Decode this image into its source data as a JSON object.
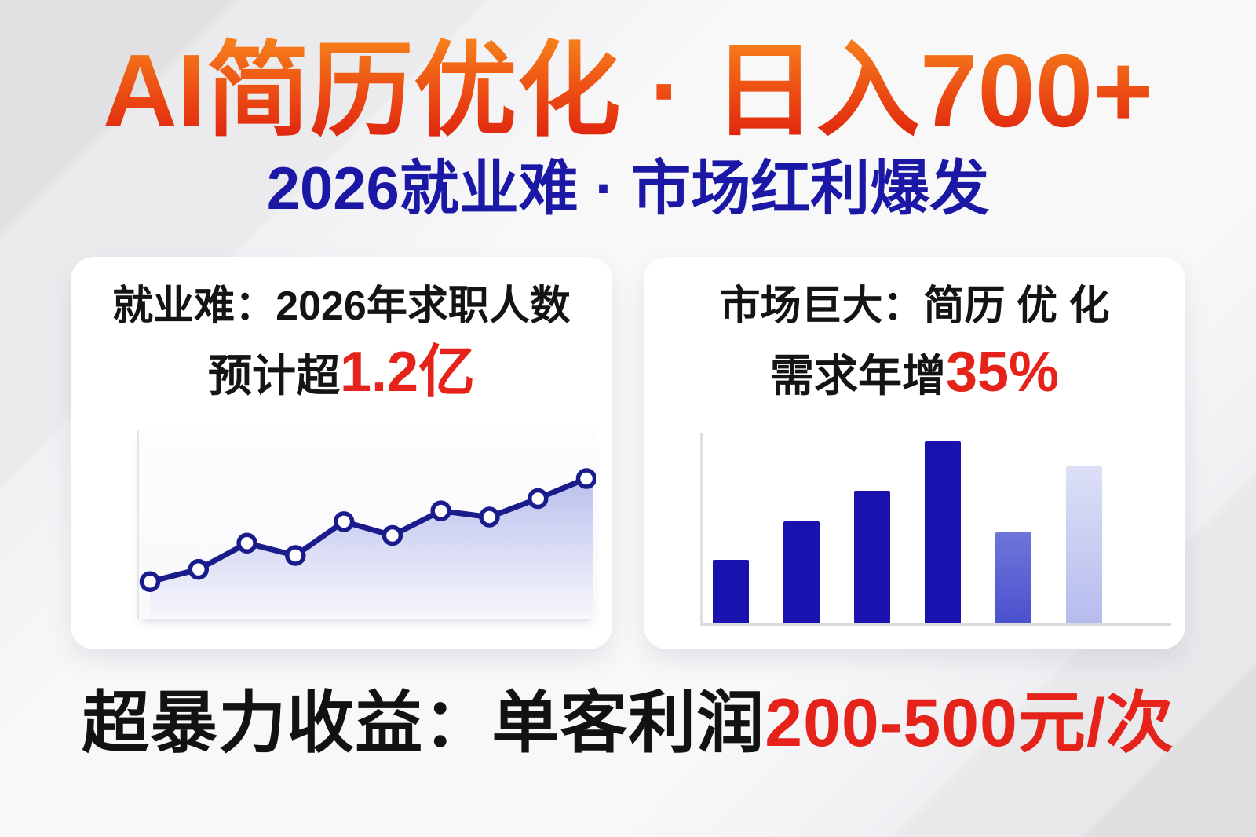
{
  "header": {
    "title": "AI简历优化 · 日入700+",
    "subtitle": "2026就业难 · 市场红利爆发"
  },
  "cards": [
    {
      "heading_line1": "就业难：2026年求职人数",
      "heading_line2_black": "预计超",
      "heading_line2_red": "1.2亿"
    },
    {
      "heading_line1": "市场巨大：简历 优 化",
      "heading_line2_black": "需求年增",
      "heading_line2_red": "35%"
    }
  ],
  "footer": {
    "black": "超暴力收益：单客利润",
    "red": "200-500元/次"
  },
  "chart_data": [
    {
      "type": "line",
      "title": "",
      "xlabel": "",
      "ylabel": "",
      "values": [
        20,
        28,
        45,
        37,
        59,
        50,
        66,
        62,
        74,
        87
      ],
      "ylim": [
        0,
        100
      ],
      "grid": false,
      "legend": false,
      "tick_labels_visible": false,
      "line_color": "#1A1C8C",
      "marker_shape": "circle",
      "marker_fill": "#FFFFFF",
      "area_gradient_top": "#7D87DC",
      "area_gradient_bottom": "#FFFFFF"
    },
    {
      "type": "bar",
      "title": "",
      "xlabel": "",
      "ylabel": "",
      "values": [
        35,
        56,
        73,
        100,
        50,
        86
      ],
      "ylim": [
        0,
        100
      ],
      "grid": false,
      "legend": false,
      "tick_labels_visible": false,
      "bar_colors": [
        {
          "from": "#1A12AE",
          "to": "#1A12AE"
        },
        {
          "from": "#1A12AE",
          "to": "#1A12AE"
        },
        {
          "from": "#1A12AE",
          "to": "#1A12AE"
        },
        {
          "from": "#1A12AE",
          "to": "#1A12AE"
        },
        {
          "from": "#6E76DA",
          "to": "#4A51CE"
        },
        {
          "from": "#DCE0F6",
          "to": "#B5BCEE"
        }
      ]
    }
  ],
  "palette": {
    "title_gradient_top": "#F6821C",
    "title_gradient_bottom": "#DD200F",
    "subtitle_navy": "#1B18A6",
    "accent_red": "#E5231A",
    "text_black": "#141414",
    "card_bg": "#FFFFFF",
    "page_bg": "#F8F8F9",
    "stripe_gray": "#E1E1E4",
    "axis_gray": "#D9D9DE"
  }
}
